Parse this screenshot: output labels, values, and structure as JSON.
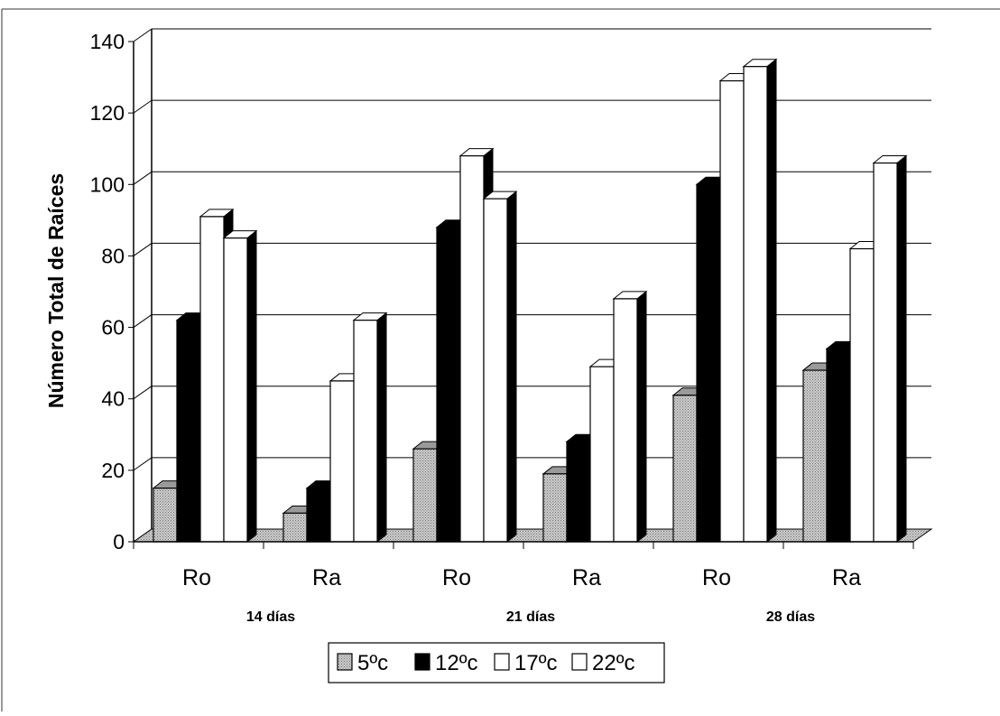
{
  "chart_data": {
    "type": "bar",
    "ylabel": "Número Total de Raíces",
    "xlabel": "",
    "ylim": [
      0,
      140
    ],
    "yticks": [
      "0",
      "20",
      "40",
      "60",
      "80",
      "100",
      "120",
      "140"
    ],
    "grid": true,
    "three_d": true,
    "legend_position": "bottom-center",
    "groups": [
      "14 días",
      "21 días",
      "28 días"
    ],
    "categories": [
      "Ro",
      "Ra",
      "Ro",
      "Ra",
      "Ro",
      "Ra"
    ],
    "series": [
      {
        "name": "5ºc",
        "color": "#bdbdbd",
        "values": [
          15,
          8,
          26,
          19,
          41,
          48
        ]
      },
      {
        "name": "12ºc",
        "color": "#000000",
        "values": [
          62,
          15,
          88,
          28,
          100,
          54
        ]
      },
      {
        "name": "17ºc",
        "color": "#ffffff",
        "values": [
          91,
          45,
          108,
          49,
          129,
          82
        ]
      },
      {
        "name": "22ºc",
        "color": "#ffffff",
        "values": [
          85,
          62,
          96,
          68,
          133,
          106
        ]
      }
    ]
  }
}
